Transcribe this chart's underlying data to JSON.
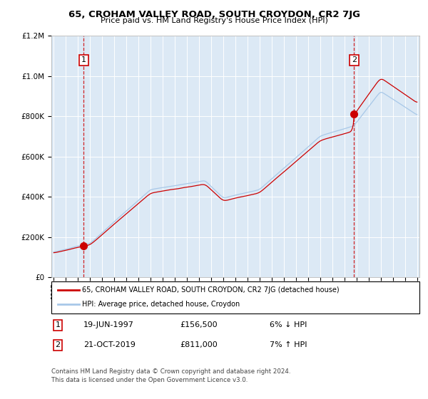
{
  "title1": "65, CROHAM VALLEY ROAD, SOUTH CROYDON, CR2 7JG",
  "title2": "Price paid vs. HM Land Registry's House Price Index (HPI)",
  "bg_color": "#dce9f5",
  "hpi_line_color": "#a8c8e8",
  "price_line_color": "#cc0000",
  "marker_color": "#cc0000",
  "dashed_line_color": "#cc0000",
  "sale1_year": 1997.47,
  "sale1_price": 156500,
  "sale2_year": 2019.8,
  "sale2_price": 811000,
  "ylim_max": 1200000,
  "ylim_min": 0,
  "xlim_min": 1995,
  "xlim_max": 2025,
  "legend_label1": "65, CROHAM VALLEY ROAD, SOUTH CROYDON, CR2 7JG (detached house)",
  "legend_label2": "HPI: Average price, detached house, Croydon",
  "footnote1": "Contains HM Land Registry data © Crown copyright and database right 2024.",
  "footnote2": "This data is licensed under the Open Government Licence v3.0.",
  "label1_date": "19-JUN-1997",
  "label1_price": "£156,500",
  "label1_hpi": "6% ↓ HPI",
  "label2_date": "21-OCT-2019",
  "label2_price": "£811,000",
  "label2_hpi": "7% ↑ HPI"
}
